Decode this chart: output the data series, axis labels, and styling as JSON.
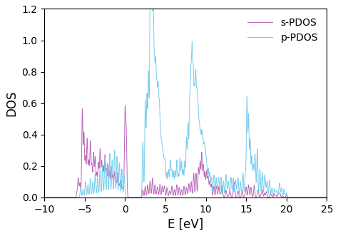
{
  "title": "",
  "xlabel": "E [eV]",
  "ylabel": "DOS",
  "xlim": [
    -10,
    25
  ],
  "ylim": [
    0,
    1.2
  ],
  "xticks": [
    -10,
    -5,
    0,
    5,
    10,
    15,
    20,
    25
  ],
  "yticks": [
    0,
    0.2,
    0.4,
    0.6,
    0.8,
    1.0,
    1.2
  ],
  "s_color": "#bb66bb",
  "p_color": "#77ccee",
  "s_label": "s-PDOS",
  "p_label": "p-PDOS",
  "background": "#ffffff",
  "legend_fontsize": 10,
  "axis_fontsize": 12,
  "tick_fontsize": 10,
  "linewidth": 0.7,
  "seed": 123
}
